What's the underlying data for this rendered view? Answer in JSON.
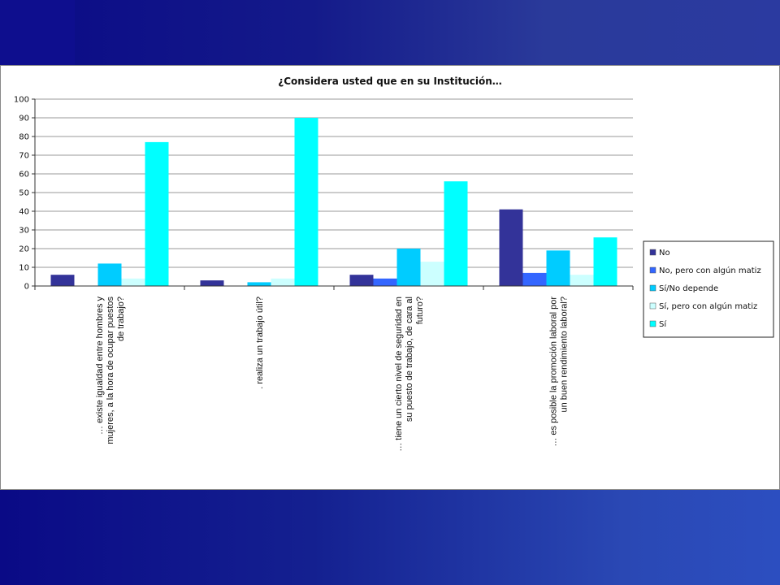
{
  "chart_data": {
    "type": "bar",
    "title": "¿Considera usted que en su Institución…",
    "xlabel": "",
    "ylabel": "",
    "ylim": [
      0,
      100
    ],
    "yticks": [
      0,
      10,
      20,
      30,
      40,
      50,
      60,
      70,
      80,
      90,
      100
    ],
    "grid": true,
    "legend_position": "right",
    "categories": [
      [
        "… existe igualdad entre hombres y",
        "mujeres, a la hora de ocupar puestos",
        "de trabajo?"
      ],
      [
        ". realiza un trabajo útil?"
      ],
      [
        "… tiene un cierto nivel de seguridad en",
        "su puesto de trabajo, de cara al",
        "futuro?"
      ],
      [
        "… es posible la promoción laboral por",
        "un buen rendimiento laboral?"
      ]
    ],
    "series": [
      {
        "name": "No",
        "color": "#333399",
        "values": [
          6,
          3,
          6,
          41
        ]
      },
      {
        "name": "No, pero con algún matiz",
        "color": "#3366ff",
        "values": [
          0,
          0,
          4,
          7
        ]
      },
      {
        "name": "Sí/No depende",
        "color": "#00ccff",
        "values": [
          12,
          2,
          20,
          19
        ]
      },
      {
        "name": "Sí, pero con algún matiz",
        "color": "#ccffff",
        "values": [
          4,
          4,
          13,
          6
        ]
      },
      {
        "name": "Sí",
        "color": "#00ffff",
        "values": [
          77,
          90,
          56,
          26
        ]
      }
    ]
  }
}
